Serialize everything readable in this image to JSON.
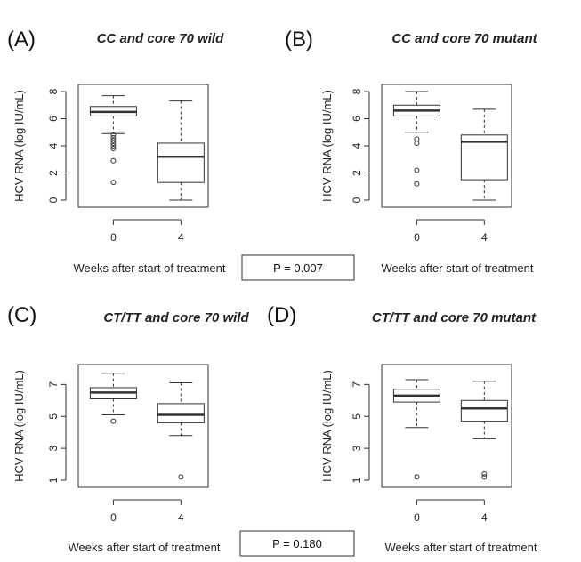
{
  "chart_data": [
    {
      "type": "box",
      "letter": "(A)",
      "title": "CC and core 70 wild",
      "ylabel": "HCV RNA (log IU/mL)",
      "xlabel": "Weeks after start of treatment",
      "categories": [
        "0",
        "4"
      ],
      "yticks": [
        "0",
        "2",
        "4",
        "6",
        "8"
      ],
      "ylim": [
        0,
        8
      ],
      "boxes": [
        {
          "category": "0",
          "min": 4.9,
          "q1": 6.2,
          "median": 6.5,
          "q3": 6.9,
          "max": 7.7,
          "outliers": [
            4.8,
            4.6,
            4.4,
            4.2,
            4.0,
            3.8,
            2.9,
            1.3
          ]
        },
        {
          "category": "4",
          "min": 0.0,
          "q1": 1.3,
          "median": 3.2,
          "q3": 4.2,
          "max": 7.3,
          "outliers": []
        }
      ]
    },
    {
      "type": "box",
      "letter": "(B)",
      "title": "CC and core 70 mutant",
      "ylabel": "HCV RNA (log IU/mL)",
      "xlabel": "Weeks after start of treatment",
      "categories": [
        "0",
        "4"
      ],
      "yticks": [
        "0",
        "2",
        "4",
        "6",
        "8"
      ],
      "ylim": [
        0,
        8
      ],
      "boxes": [
        {
          "category": "0",
          "min": 5.0,
          "q1": 6.2,
          "median": 6.6,
          "q3": 7.0,
          "max": 8.0,
          "outliers": [
            4.5,
            4.2,
            2.2,
            1.2
          ]
        },
        {
          "category": "4",
          "min": 0.0,
          "q1": 1.5,
          "median": 4.3,
          "q3": 4.8,
          "max": 6.7,
          "outliers": []
        }
      ]
    },
    {
      "type": "box",
      "letter": "(C)",
      "title": "CT/TT and core 70 wild",
      "ylabel": "HCV RNA (log IU/mL)",
      "xlabel": "Weeks after start of treatment",
      "categories": [
        "0",
        "4"
      ],
      "yticks": [
        "1",
        "3",
        "5",
        "7"
      ],
      "ylim": [
        1,
        7.8
      ],
      "boxes": [
        {
          "category": "0",
          "min": 5.1,
          "q1": 6.1,
          "median": 6.5,
          "q3": 6.8,
          "max": 7.7,
          "outliers": [
            4.7
          ]
        },
        {
          "category": "4",
          "min": 3.8,
          "q1": 4.6,
          "median": 5.1,
          "q3": 5.8,
          "max": 7.1,
          "outliers": [
            1.2
          ]
        }
      ]
    },
    {
      "type": "box",
      "letter": "(D)",
      "title": "CT/TT and core 70 mutant",
      "ylabel": "HCV RNA (log IU/mL)",
      "xlabel": "Weeks after start of treatment",
      "categories": [
        "0",
        "4"
      ],
      "yticks": [
        "1",
        "3",
        "5",
        "7"
      ],
      "ylim": [
        1,
        7.8
      ],
      "boxes": [
        {
          "category": "0",
          "min": 4.3,
          "q1": 5.9,
          "median": 6.3,
          "q3": 6.7,
          "max": 7.3,
          "outliers": [
            1.2
          ]
        },
        {
          "category": "4",
          "min": 3.6,
          "q1": 4.7,
          "median": 5.5,
          "q3": 6.0,
          "max": 7.2,
          "outliers": [
            1.4,
            1.2
          ]
        }
      ]
    }
  ],
  "p_values": [
    "P = 0.007",
    "P = 0.180"
  ]
}
